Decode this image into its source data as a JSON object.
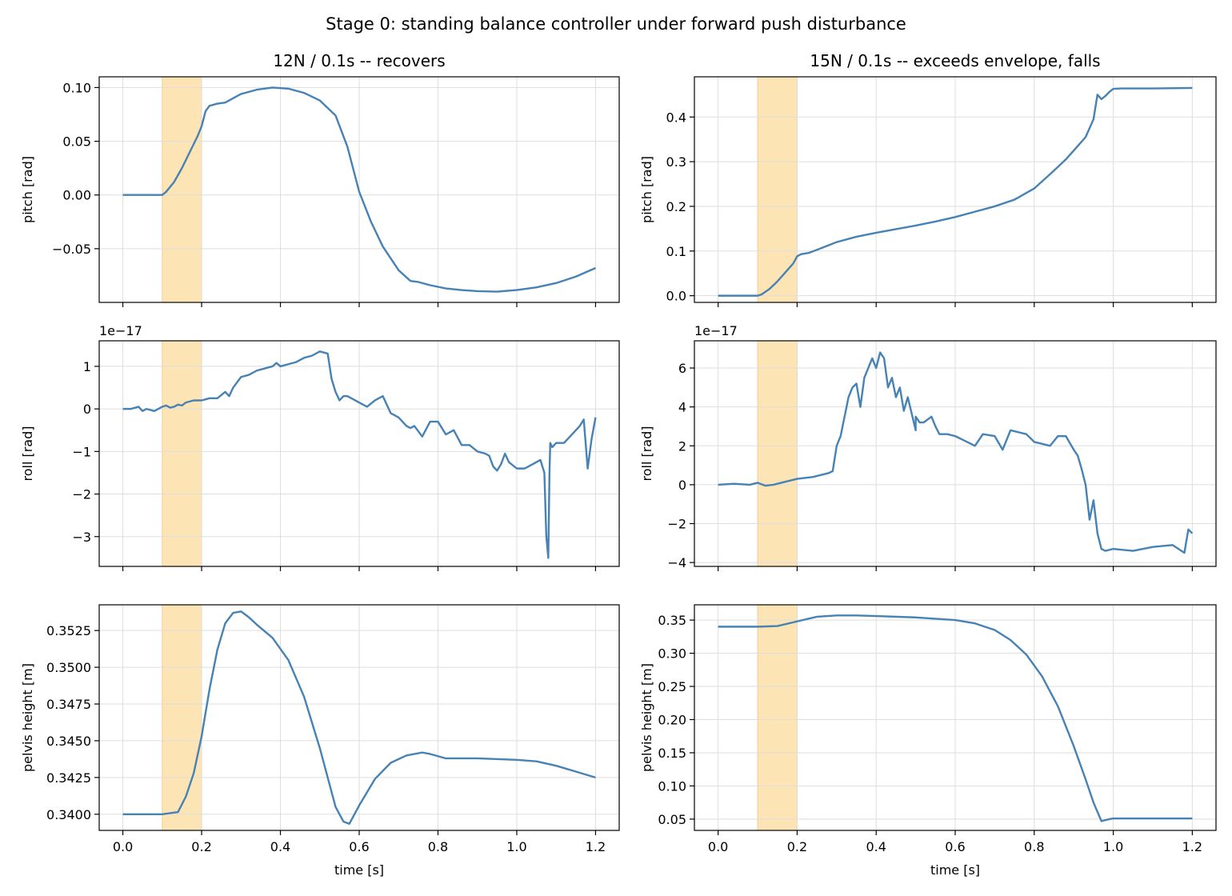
{
  "figure": {
    "title": "Stage 0: standing balance controller under forward push disturbance",
    "push_color": "#fde4b5",
    "line_color": "#4682b4"
  },
  "columns": [
    {
      "title": "12N / 0.1s -- recovers"
    },
    {
      "title": "15N / 0.1s -- exceeds envelope, falls"
    }
  ],
  "chart_data": [
    {
      "type": "line",
      "panel": "pitch-12N",
      "title": "12N / 0.1s -- recovers",
      "xlabel": "",
      "ylabel": "pitch [rad]",
      "xlim": [
        -0.06,
        1.26
      ],
      "ylim": [
        -0.1,
        0.11
      ],
      "xticks": [
        0.0,
        0.2,
        0.4,
        0.6,
        0.8,
        1.0,
        1.2
      ],
      "show_xticklabels": false,
      "yticks": [
        -0.05,
        0.0,
        0.05,
        0.1
      ],
      "yticklabels": [
        "−0.05",
        "0.00",
        "0.05",
        "0.10"
      ],
      "offset_label": "",
      "grid": true,
      "push_window": [
        0.1,
        0.2
      ],
      "x": [
        0.0,
        0.1,
        0.11,
        0.13,
        0.15,
        0.17,
        0.19,
        0.2,
        0.21,
        0.22,
        0.24,
        0.26,
        0.28,
        0.3,
        0.34,
        0.38,
        0.42,
        0.46,
        0.5,
        0.54,
        0.57,
        0.6,
        0.63,
        0.66,
        0.7,
        0.73,
        0.75,
        0.78,
        0.82,
        0.86,
        0.9,
        0.95,
        1.0,
        1.05,
        1.1,
        1.15,
        1.2
      ],
      "y": [
        0.0,
        0.0,
        0.003,
        0.012,
        0.025,
        0.04,
        0.055,
        0.064,
        0.078,
        0.083,
        0.085,
        0.086,
        0.09,
        0.094,
        0.098,
        0.1,
        0.099,
        0.095,
        0.088,
        0.074,
        0.045,
        0.003,
        -0.025,
        -0.048,
        -0.07,
        -0.08,
        -0.081,
        -0.084,
        -0.087,
        -0.0885,
        -0.0895,
        -0.09,
        -0.0885,
        -0.086,
        -0.082,
        -0.076,
        -0.068
      ]
    },
    {
      "type": "line",
      "panel": "pitch-15N",
      "title": "15N / 0.1s -- exceeds envelope, falls",
      "xlabel": "",
      "ylabel": "pitch [rad]",
      "xlim": [
        -0.06,
        1.26
      ],
      "ylim": [
        -0.015,
        0.49
      ],
      "xticks": [
        0.0,
        0.2,
        0.4,
        0.6,
        0.8,
        1.0,
        1.2
      ],
      "show_xticklabels": false,
      "yticks": [
        0.0,
        0.1,
        0.2,
        0.3,
        0.4
      ],
      "yticklabels": [
        "0.0",
        "0.1",
        "0.2",
        "0.3",
        "0.4"
      ],
      "offset_label": "",
      "grid": true,
      "push_window": [
        0.1,
        0.2
      ],
      "x": [
        0.0,
        0.1,
        0.11,
        0.13,
        0.15,
        0.17,
        0.19,
        0.2,
        0.21,
        0.23,
        0.26,
        0.3,
        0.35,
        0.4,
        0.45,
        0.5,
        0.55,
        0.6,
        0.65,
        0.7,
        0.75,
        0.8,
        0.85,
        0.88,
        0.91,
        0.93,
        0.95,
        0.96,
        0.97,
        0.98,
        0.99,
        1.0,
        1.02,
        1.1,
        1.2
      ],
      "y": [
        0.0,
        0.0,
        0.003,
        0.015,
        0.032,
        0.052,
        0.072,
        0.088,
        0.093,
        0.096,
        0.106,
        0.12,
        0.132,
        0.141,
        0.149,
        0.157,
        0.166,
        0.176,
        0.188,
        0.2,
        0.215,
        0.24,
        0.28,
        0.305,
        0.335,
        0.355,
        0.395,
        0.45,
        0.44,
        0.447,
        0.456,
        0.463,
        0.464,
        0.464,
        0.465
      ]
    },
    {
      "type": "line",
      "panel": "roll-12N",
      "title": "",
      "xlabel": "",
      "ylabel": "roll [rad]",
      "xlim": [
        -0.06,
        1.26
      ],
      "ylim": [
        -3.7,
        1.6
      ],
      "xticks": [
        0.0,
        0.2,
        0.4,
        0.6,
        0.8,
        1.0,
        1.2
      ],
      "show_xticklabels": false,
      "yticks": [
        -3,
        -2,
        -1,
        0,
        1
      ],
      "yticklabels": [
        "−3",
        "−2",
        "−1",
        "0",
        "1"
      ],
      "offset_label": "1e−17",
      "grid": true,
      "push_window": [
        0.1,
        0.2
      ],
      "x": [
        0.0,
        0.02,
        0.04,
        0.05,
        0.06,
        0.08,
        0.1,
        0.11,
        0.12,
        0.13,
        0.14,
        0.15,
        0.16,
        0.18,
        0.2,
        0.22,
        0.24,
        0.26,
        0.27,
        0.28,
        0.3,
        0.32,
        0.34,
        0.36,
        0.38,
        0.39,
        0.4,
        0.42,
        0.44,
        0.46,
        0.48,
        0.5,
        0.52,
        0.53,
        0.54,
        0.55,
        0.56,
        0.57,
        0.58,
        0.59,
        0.6,
        0.62,
        0.64,
        0.66,
        0.68,
        0.7,
        0.72,
        0.73,
        0.74,
        0.76,
        0.78,
        0.8,
        0.82,
        0.84,
        0.86,
        0.88,
        0.9,
        0.92,
        0.93,
        0.94,
        0.95,
        0.96,
        0.97,
        0.98,
        1.0,
        1.02,
        1.04,
        1.06,
        1.07,
        1.075,
        1.08,
        1.083,
        1.085,
        1.09,
        1.1,
        1.12,
        1.14,
        1.16,
        1.17,
        1.18,
        1.19,
        1.2
      ],
      "y": [
        0.0,
        0.0,
        0.05,
        -0.05,
        0.0,
        -0.05,
        0.05,
        0.08,
        0.03,
        0.05,
        0.1,
        0.08,
        0.15,
        0.2,
        0.2,
        0.25,
        0.25,
        0.4,
        0.3,
        0.5,
        0.75,
        0.8,
        0.9,
        0.95,
        1.0,
        1.08,
        1.0,
        1.05,
        1.1,
        1.2,
        1.25,
        1.35,
        1.3,
        0.7,
        0.4,
        0.2,
        0.3,
        0.3,
        0.25,
        0.2,
        0.15,
        0.05,
        0.2,
        0.3,
        -0.1,
        -0.2,
        -0.4,
        -0.45,
        -0.4,
        -0.65,
        -0.3,
        -0.3,
        -0.6,
        -0.5,
        -0.85,
        -0.85,
        -1.0,
        -1.05,
        -1.1,
        -1.35,
        -1.45,
        -1.3,
        -1.05,
        -1.25,
        -1.4,
        -1.4,
        -1.3,
        -1.2,
        -1.5,
        -3.0,
        -3.5,
        -1.5,
        -0.8,
        -0.9,
        -0.8,
        -0.8,
        -0.6,
        -0.4,
        -0.25,
        -1.4,
        -0.7,
        -0.2
      ]
    },
    {
      "type": "line",
      "panel": "roll-15N",
      "title": "",
      "xlabel": "",
      "ylabel": "roll [rad]",
      "xlim": [
        -0.06,
        1.26
      ],
      "ylim": [
        -4.2,
        7.4
      ],
      "xticks": [
        0.0,
        0.2,
        0.4,
        0.6,
        0.8,
        1.0,
        1.2
      ],
      "show_xticklabels": false,
      "yticks": [
        -4,
        -2,
        0,
        2,
        4,
        6
      ],
      "yticklabels": [
        "−4",
        "−2",
        "0",
        "2",
        "4",
        "6"
      ],
      "offset_label": "1e−17",
      "grid": true,
      "push_window": [
        0.1,
        0.2
      ],
      "x": [
        0.0,
        0.04,
        0.08,
        0.1,
        0.12,
        0.14,
        0.16,
        0.2,
        0.24,
        0.28,
        0.29,
        0.3,
        0.31,
        0.32,
        0.33,
        0.34,
        0.35,
        0.36,
        0.37,
        0.38,
        0.39,
        0.4,
        0.41,
        0.42,
        0.43,
        0.44,
        0.45,
        0.46,
        0.47,
        0.48,
        0.5,
        0.5,
        0.51,
        0.52,
        0.54,
        0.55,
        0.56,
        0.58,
        0.6,
        0.62,
        0.65,
        0.67,
        0.7,
        0.72,
        0.74,
        0.76,
        0.78,
        0.8,
        0.82,
        0.84,
        0.86,
        0.88,
        0.9,
        0.91,
        0.92,
        0.93,
        0.94,
        0.95,
        0.96,
        0.97,
        0.98,
        1.0,
        1.05,
        1.1,
        1.15,
        1.18,
        1.19,
        1.2
      ],
      "y": [
        0.0,
        0.05,
        0.0,
        0.1,
        -0.05,
        0.0,
        0.1,
        0.3,
        0.4,
        0.6,
        0.7,
        2.0,
        2.5,
        3.5,
        4.5,
        5.0,
        5.2,
        4.0,
        5.5,
        6.0,
        6.5,
        6.0,
        6.8,
        6.5,
        5.0,
        5.5,
        4.5,
        5.0,
        3.8,
        4.5,
        2.8,
        3.5,
        3.2,
        3.2,
        3.5,
        3.0,
        2.6,
        2.6,
        2.5,
        2.3,
        2.0,
        2.6,
        2.5,
        1.8,
        2.8,
        2.7,
        2.6,
        2.2,
        2.1,
        2.0,
        2.5,
        2.5,
        1.8,
        1.5,
        0.8,
        0.0,
        -1.8,
        -0.8,
        -2.5,
        -3.3,
        -3.4,
        -3.3,
        -3.4,
        -3.2,
        -3.1,
        -3.5,
        -2.3,
        -2.5
      ]
    },
    {
      "type": "line",
      "panel": "height-12N",
      "title": "",
      "xlabel": "time [s]",
      "ylabel": "pelvis height [m]",
      "xlim": [
        -0.06,
        1.26
      ],
      "ylim": [
        0.3389,
        0.35425
      ],
      "xticks": [
        0.0,
        0.2,
        0.4,
        0.6,
        0.8,
        1.0,
        1.2
      ],
      "show_xticklabels": true,
      "xticklabels": [
        "0.0",
        "0.2",
        "0.4",
        "0.6",
        "0.8",
        "1.0",
        "1.2"
      ],
      "yticks": [
        0.34,
        0.3425,
        0.345,
        0.3475,
        0.35,
        0.3525
      ],
      "yticklabels": [
        "0.3400",
        "0.3425",
        "0.3450",
        "0.3475",
        "0.3500",
        "0.3525"
      ],
      "offset_label": "",
      "grid": true,
      "push_window": [
        0.1,
        0.2
      ],
      "x": [
        0.0,
        0.1,
        0.14,
        0.16,
        0.18,
        0.2,
        0.22,
        0.24,
        0.26,
        0.28,
        0.3,
        0.32,
        0.34,
        0.38,
        0.42,
        0.46,
        0.5,
        0.54,
        0.56,
        0.575,
        0.6,
        0.64,
        0.68,
        0.72,
        0.76,
        0.78,
        0.82,
        0.9,
        1.0,
        1.05,
        1.1,
        1.15,
        1.2
      ],
      "y": [
        0.34,
        0.34,
        0.34015,
        0.3412,
        0.3428,
        0.3453,
        0.3485,
        0.3512,
        0.353,
        0.3537,
        0.3538,
        0.3534,
        0.3529,
        0.352,
        0.3505,
        0.348,
        0.3445,
        0.3405,
        0.3395,
        0.33935,
        0.3406,
        0.3424,
        0.3435,
        0.344,
        0.3442,
        0.3441,
        0.3438,
        0.3438,
        0.3437,
        0.3436,
        0.3433,
        0.3429,
        0.3425
      ]
    },
    {
      "type": "line",
      "panel": "height-15N",
      "title": "",
      "xlabel": "time [s]",
      "ylabel": "pelvis height [m]",
      "xlim": [
        -0.06,
        1.26
      ],
      "ylim": [
        0.033,
        0.373
      ],
      "xticks": [
        0.0,
        0.2,
        0.4,
        0.6,
        0.8,
        1.0,
        1.2
      ],
      "show_xticklabels": true,
      "xticklabels": [
        "0.0",
        "0.2",
        "0.4",
        "0.6",
        "0.8",
        "1.0",
        "1.2"
      ],
      "yticks": [
        0.05,
        0.1,
        0.15,
        0.2,
        0.25,
        0.3,
        0.35
      ],
      "yticklabels": [
        "0.05",
        "0.10",
        "0.15",
        "0.20",
        "0.25",
        "0.30",
        "0.35"
      ],
      "offset_label": "",
      "grid": true,
      "push_window": [
        0.1,
        0.2
      ],
      "x": [
        0.0,
        0.1,
        0.15,
        0.2,
        0.25,
        0.3,
        0.35,
        0.4,
        0.5,
        0.6,
        0.65,
        0.7,
        0.74,
        0.78,
        0.82,
        0.86,
        0.9,
        0.93,
        0.95,
        0.97,
        0.99,
        1.0,
        1.1,
        1.2
      ],
      "y": [
        0.34,
        0.34,
        0.341,
        0.348,
        0.355,
        0.357,
        0.357,
        0.356,
        0.354,
        0.35,
        0.345,
        0.335,
        0.32,
        0.298,
        0.265,
        0.22,
        0.16,
        0.11,
        0.075,
        0.047,
        0.05,
        0.051,
        0.051,
        0.051
      ]
    }
  ]
}
